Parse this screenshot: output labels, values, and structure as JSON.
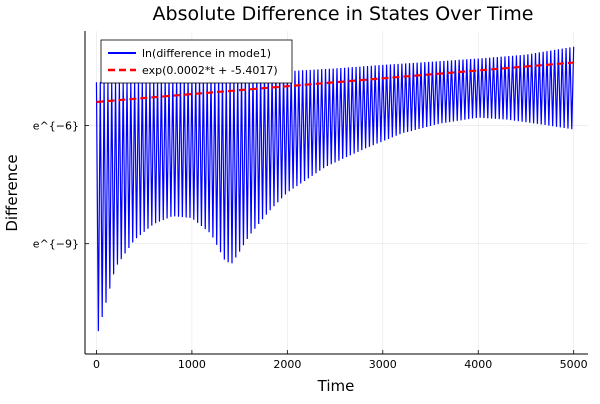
{
  "chart_data": {
    "type": "line",
    "title": "Absolute Difference in States Over Time",
    "xlabel": "Time",
    "ylabel": "Difference",
    "xlim": [
      -120,
      5150
    ],
    "ylim": [
      -11.8,
      -3.6
    ],
    "y_scale": "log",
    "y_log_base": "e",
    "x_ticks": [
      {
        "value": 0,
        "label": "0"
      },
      {
        "value": 1000,
        "label": "1000"
      },
      {
        "value": 2000,
        "label": "2000"
      },
      {
        "value": 3000,
        "label": "3000"
      },
      {
        "value": 4000,
        "label": "4000"
      },
      {
        "value": 5000,
        "label": "5000"
      }
    ],
    "y_ticks": [
      {
        "value": -6,
        "label": "e^{−6}"
      },
      {
        "value": -9,
        "label": "e^{−9}"
      }
    ],
    "grid": true,
    "legend_position": "top-left",
    "series": [
      {
        "name": "ln(difference in mode1)",
        "color": "#0000ff",
        "style": "solid",
        "oscillation_period": 40,
        "upper_envelope": {
          "t": [
            0,
            500,
            1000,
            1500,
            2000,
            2500,
            3000,
            3500,
            4000,
            4500,
            5000
          ],
          "ln_value": [
            -4.9,
            -4.85,
            -4.78,
            -4.7,
            -4.62,
            -4.55,
            -4.46,
            -4.38,
            -4.3,
            -4.2,
            -4.0
          ]
        },
        "lower_envelope": {
          "t": [
            0,
            100,
            200,
            400,
            600,
            800,
            1000,
            1200,
            1350,
            1420,
            1500,
            1600,
            1800,
            2000,
            2400,
            2800,
            3200,
            3600,
            4000,
            4300,
            4600,
            5000
          ],
          "ln_value": [
            -11.4,
            -10.5,
            -9.6,
            -8.9,
            -8.5,
            -8.3,
            -8.35,
            -8.75,
            -9.45,
            -9.5,
            -9.2,
            -8.8,
            -8.2,
            -7.7,
            -7.05,
            -6.6,
            -6.2,
            -5.95,
            -5.8,
            -5.85,
            -5.95,
            -6.1
          ]
        }
      },
      {
        "name": "exp(0.0002*t + -5.4017)",
        "color": "#ff0000",
        "style": "dashed",
        "slope": 0.0002,
        "intercept": -5.4017,
        "t_range": [
          0,
          5000
        ]
      }
    ]
  }
}
